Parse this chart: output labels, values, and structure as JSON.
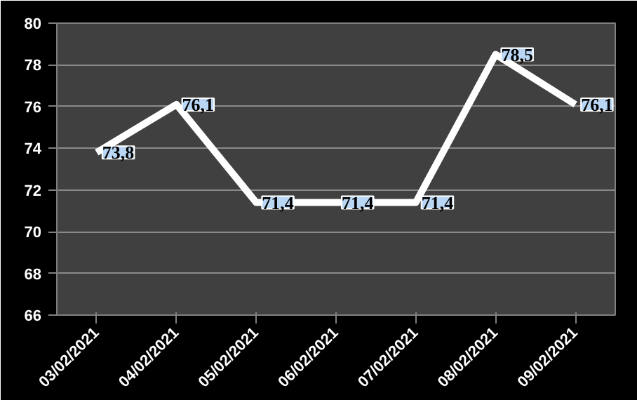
{
  "chart_data": {
    "type": "line",
    "categories": [
      "03/02/2021",
      "04/02/2021",
      "05/02/2021",
      "06/02/2021",
      "07/02/2021",
      "08/02/2021",
      "09/02/2021"
    ],
    "series": [
      {
        "color": "#ffffff",
        "values": [
          73.8,
          76.1,
          71.4,
          71.4,
          71.4,
          78.5,
          76.1
        ],
        "value_labels": [
          "73,8",
          "76,1",
          "71,4",
          "71,4",
          "71,4",
          "78,5",
          "76,1"
        ]
      }
    ],
    "ylim": [
      66,
      80
    ],
    "yticks": [
      66,
      68,
      70,
      72,
      74,
      76,
      78,
      80
    ],
    "grid": "y",
    "marker": "none",
    "line_style": "solid"
  }
}
